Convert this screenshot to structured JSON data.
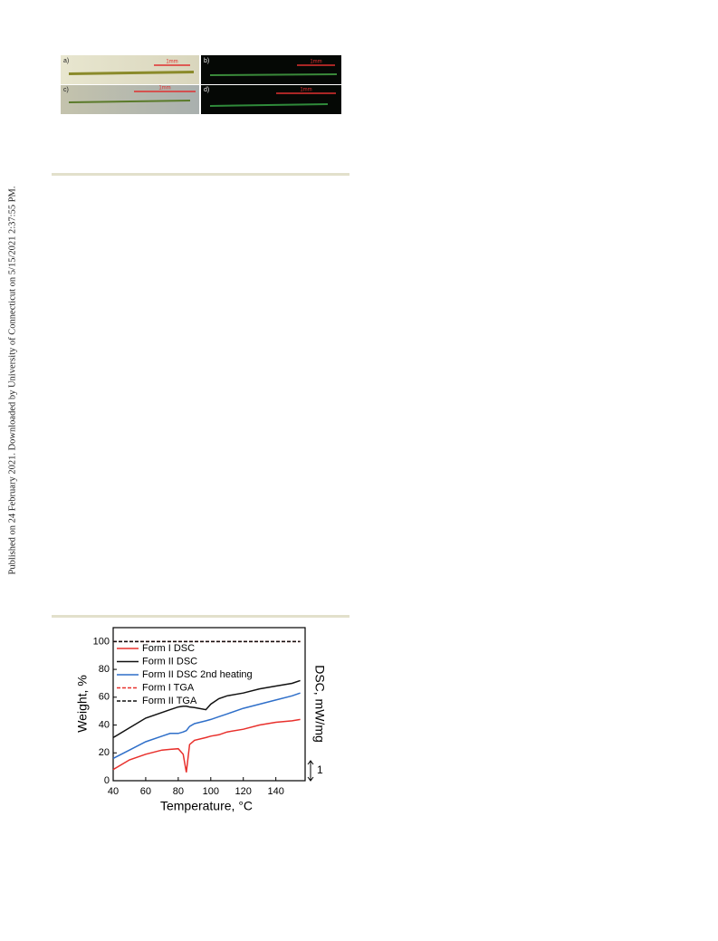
{
  "side_note": "Published on 24 February 2021. Downloaded by University of Connecticut on 5/15/2021 2:37:55 PM.",
  "figure": {
    "panels": [
      {
        "label": "a)",
        "scale": "1mm"
      },
      {
        "label": "b)",
        "scale": "1mm"
      },
      {
        "label": "c)",
        "scale": "1mm"
      },
      {
        "label": "d)",
        "scale": "1mm"
      }
    ]
  },
  "chart_data": {
    "type": "line",
    "xlabel": "Temperature, °C",
    "ylabel": "Weight, %",
    "y2label": "DSC, mW/mg",
    "scale_label": "1",
    "x": [
      40,
      50,
      60,
      70,
      75,
      80,
      83,
      85,
      87,
      90,
      97,
      100,
      105,
      110,
      120,
      130,
      140,
      150,
      155
    ],
    "xlim": [
      40,
      158
    ],
    "xticks": [
      40,
      60,
      80,
      100,
      120,
      140
    ],
    "ylim": [
      0,
      110
    ],
    "yticks": [
      0,
      20,
      40,
      60,
      80,
      100
    ],
    "series": [
      {
        "name": "Form I DSC",
        "color": "#e8302c",
        "dash": false,
        "values": [
          8,
          15,
          19,
          22,
          22.5,
          23,
          19,
          6,
          26,
          29,
          31,
          32,
          33,
          35,
          37,
          40,
          42,
          43,
          44
        ]
      },
      {
        "name": "Form II DSC",
        "color": "#111111",
        "dash": false,
        "values": [
          31,
          38,
          45,
          49,
          51,
          53,
          53.5,
          53.5,
          53,
          52.5,
          51,
          55,
          59,
          61,
          63,
          66,
          68,
          70,
          72
        ]
      },
      {
        "name": "Form II DSC 2nd heating",
        "color": "#2f6fc9",
        "dash": false,
        "values": [
          16,
          22,
          28,
          32,
          34,
          34,
          35,
          36,
          39,
          41,
          43,
          44,
          46,
          48,
          52,
          55,
          58,
          61,
          63
        ]
      },
      {
        "name": "Form I TGA",
        "color": "#e8302c",
        "dash": true,
        "values": [
          100,
          100,
          100,
          100,
          100,
          100,
          100,
          100,
          100,
          100,
          100,
          100,
          100,
          100,
          100,
          100,
          100,
          100,
          100
        ]
      },
      {
        "name": "Form II TGA",
        "color": "#111111",
        "dash": true,
        "values": [
          100,
          100,
          100,
          100,
          100,
          100,
          100,
          100,
          100,
          100,
          100,
          100,
          100,
          100,
          100,
          100,
          100,
          100,
          100
        ]
      }
    ]
  }
}
